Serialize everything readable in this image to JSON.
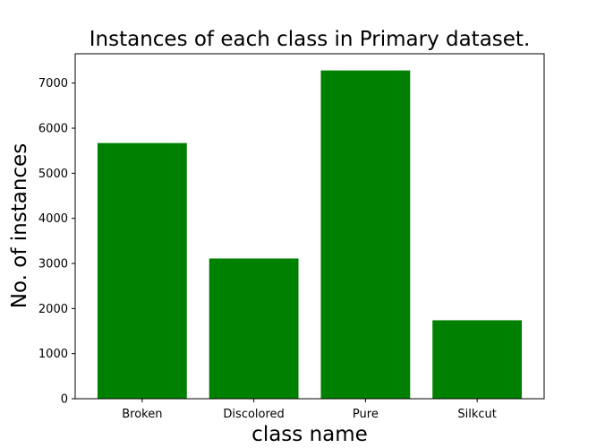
{
  "chart_data": {
    "type": "bar",
    "title": "Instances of each class in Primary dataset.",
    "xlabel": "class name",
    "ylabel": "No. of instances",
    "categories": [
      "Broken",
      "Discolored",
      "Pure",
      "Silkcut"
    ],
    "values": [
      5670,
      3110,
      7280,
      1740
    ],
    "ylim": [
      0,
      7650
    ],
    "yticks": [
      0,
      1000,
      2000,
      3000,
      4000,
      5000,
      6000,
      7000
    ],
    "bar_color": "#008000",
    "grid": false
  }
}
